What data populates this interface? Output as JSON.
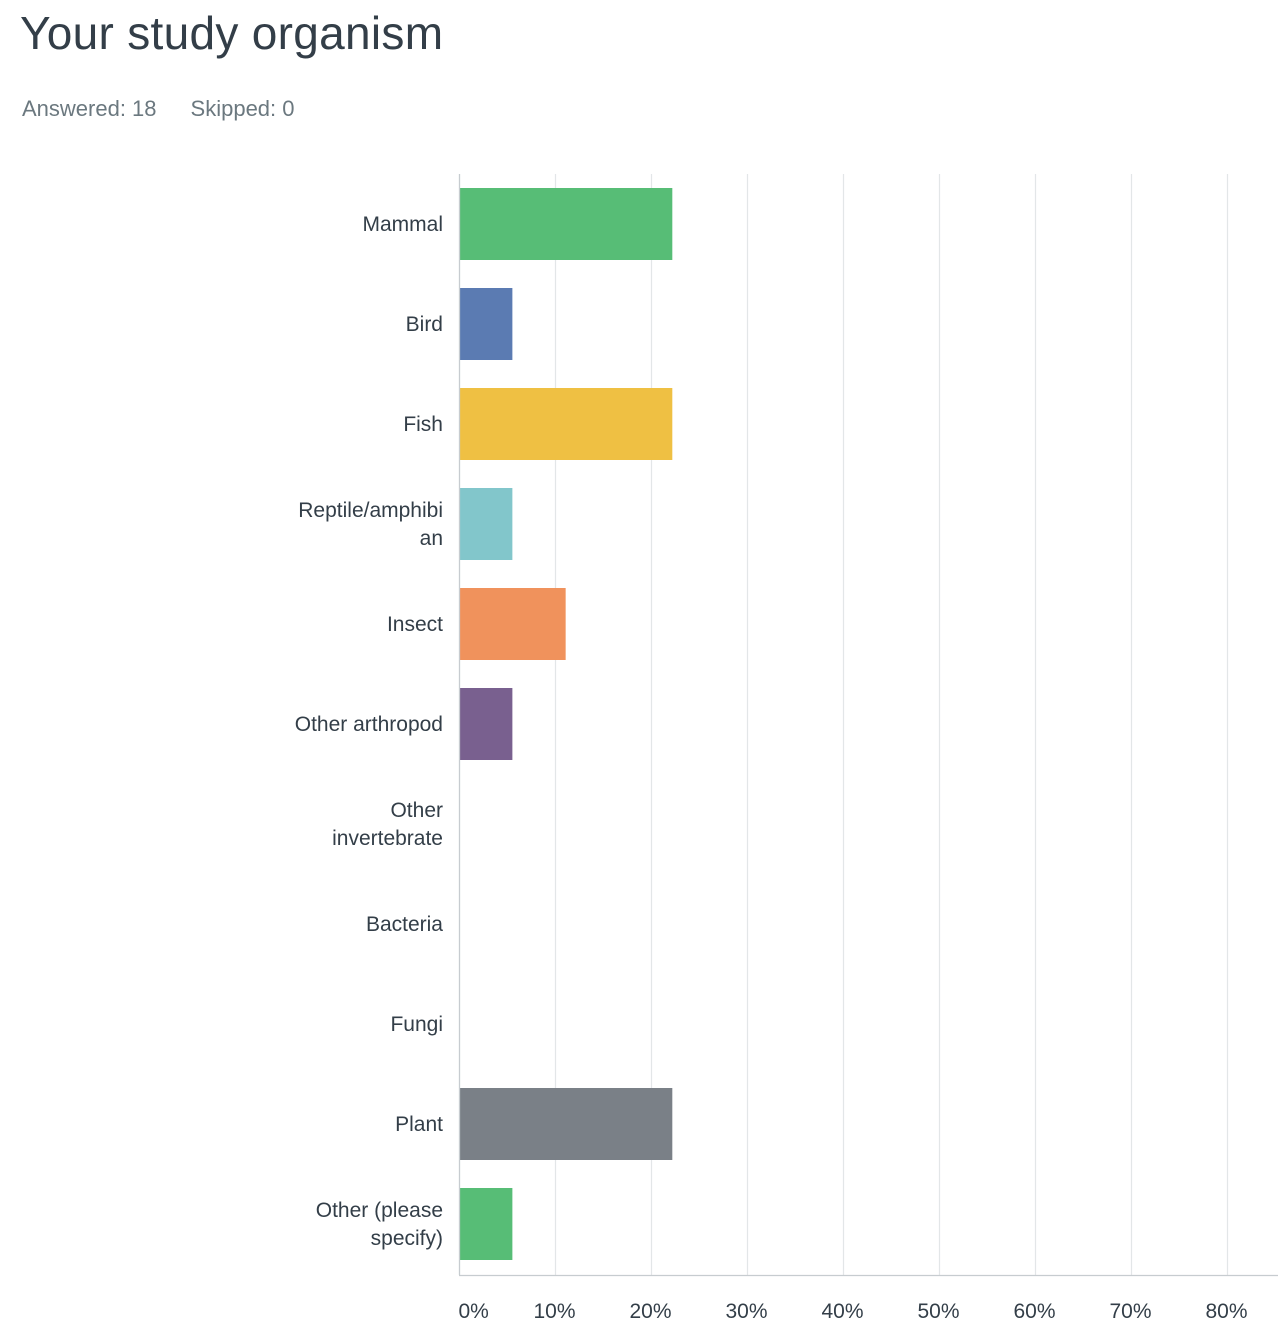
{
  "header": {
    "title": "Your study organism",
    "answered_label": "Answered: 18",
    "skipped_label": "Skipped: 0"
  },
  "chart_data": {
    "type": "bar",
    "orientation": "horizontal",
    "title": "Your study organism",
    "categories": [
      [
        "Mammal"
      ],
      [
        "Bird"
      ],
      [
        "Fish"
      ],
      [
        "Reptile/amphibi",
        "an"
      ],
      [
        "Insect"
      ],
      [
        "Other arthropod"
      ],
      [
        "Other",
        "invertebrate"
      ],
      [
        "Bacteria"
      ],
      [
        "Fungi"
      ],
      [
        "Plant"
      ],
      [
        "Other (please",
        "specify)"
      ]
    ],
    "values": [
      22.22,
      5.56,
      22.22,
      5.56,
      11.11,
      5.56,
      0,
      0,
      0,
      22.22,
      5.56
    ],
    "colors": [
      "#57bd76",
      "#5b7bb2",
      "#efc043",
      "#82c6cb",
      "#f0925c",
      "#79608f",
      "#57bd76",
      "#5b7bb2",
      "#efc043",
      "#7a8087",
      "#57bd76"
    ],
    "x_ticks": [
      "0%",
      "10%",
      "20%",
      "30%",
      "40%",
      "50%",
      "60%",
      "70%",
      "80%"
    ],
    "xlim": [
      0,
      85
    ],
    "grid": true,
    "xlabel": "",
    "ylabel": ""
  }
}
